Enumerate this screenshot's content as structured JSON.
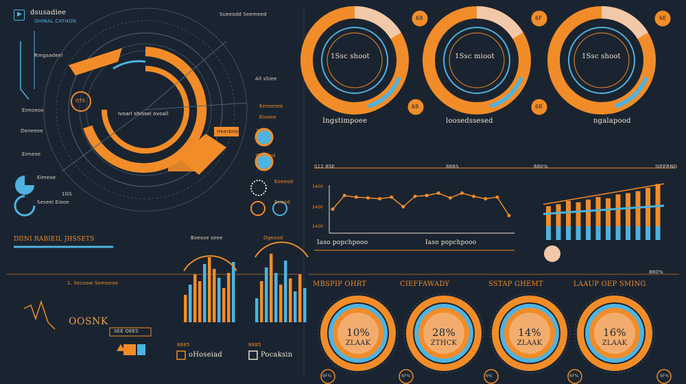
{
  "colors": {
    "bg": "#1a2430",
    "orange": "#f28c28",
    "blue": "#4fb3e0",
    "cream": "#f2c9a8",
    "text": "#e8e2d4"
  },
  "left": {
    "title": "dsusadiee",
    "subtitle": "OHINAL CATHON",
    "center_label": "Ivoarl shiosel ovoall",
    "tag_a": "OTE",
    "tag_b": "Heerbne",
    "side_labels": [
      "Rmgaadeel",
      "Eimoeoo",
      "Deneeoe",
      "Eimeoe",
      "Eimeoe",
      "Seseel Eiooe",
      "1GS"
    ],
    "right_labels": [
      "Sueeodd Seemeed",
      "All sSiee",
      "Eeroonee",
      "Eiooee"
    ],
    "mini_labels": [
      "3BS",
      "Oeoeed",
      "Eoeeod",
      "Eeeod"
    ]
  },
  "bottom_left": {
    "heading": "DIINI RABIEIL JHSSETS",
    "section": "1. Secoow Semoeoe",
    "big_text": "OOSNK",
    "box_label": "SEE OEES",
    "card_title_a": "Boeose seee",
    "card_title_b": "Dgeood",
    "footer_a": "oHoseiad",
    "footer_b": "Pocaksin",
    "pct_a": "8885",
    "pct_b": "8885"
  },
  "donuts_top": [
    {
      "label": "1Ssc shoot",
      "badge_top": "68",
      "badge_bottom": "68",
      "caption": "Ingstimpoee"
    },
    {
      "label": "1Ssc mioot",
      "badge_top": "6F",
      "badge_bottom": "68",
      "caption": "loosedssesed"
    },
    {
      "label": "1Ssc shoot",
      "badge_top": "6E",
      "badge_bottom": "",
      "caption": "ngalapood"
    }
  ],
  "line_chart": {
    "y_ticks": [
      "1400",
      "2400",
      "3400"
    ],
    "header_left": "S12 8SE",
    "header_mid": "888S",
    "header_right": "680%",
    "legend_a": "Iaso popchpooo",
    "legend_b": "Iaso popchpooo",
    "footer_pct": "880%"
  },
  "chart_data": {
    "type": "line",
    "x": [
      1,
      2,
      3,
      4,
      5,
      6,
      7,
      8,
      9,
      10,
      11,
      12,
      13,
      14,
      15,
      16
    ],
    "series": [
      {
        "values": [
          30,
          47,
          45,
          44,
          43,
          45,
          33,
          46,
          47,
          50,
          44,
          50,
          46,
          43,
          45,
          22
        ]
      }
    ],
    "ylim": [
      0,
      60
    ]
  },
  "bar_chart": {
    "type": "bar",
    "values": [
      52,
      55,
      60,
      58,
      62,
      66,
      64,
      70,
      72,
      75,
      80,
      86
    ],
    "footer": "SIEERNG"
  },
  "rings_bottom": [
    {
      "title": "MBSPIP OHRT",
      "pct": "10%",
      "sub": "ZLAAK"
    },
    {
      "title": "CIEFFAWADY",
      "pct": "28%",
      "sub": "ZTHCK"
    },
    {
      "title": "SSTAP GHEMT",
      "pct": "14%",
      "sub": "ZLAAK"
    },
    {
      "title": "LAAUP OEP SMING",
      "pct": "16%",
      "sub": "ZLAAK"
    }
  ],
  "ring_badges": [
    "9F%",
    "6F%",
    "6%",
    "6F%",
    "9F%"
  ]
}
